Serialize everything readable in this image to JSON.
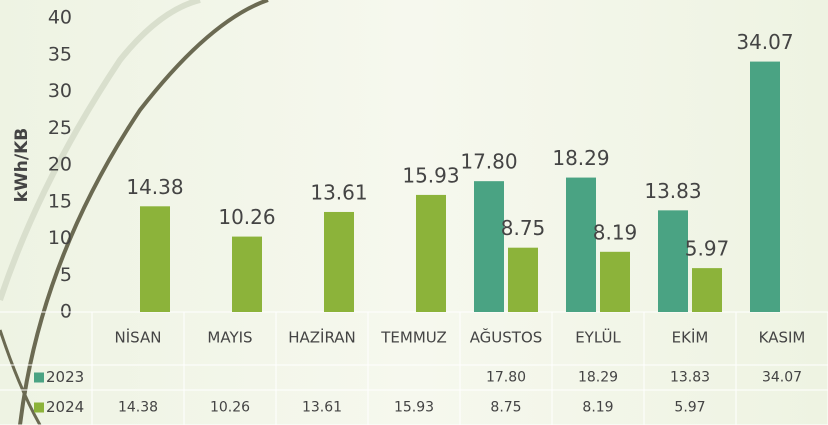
{
  "chart_data": {
    "type": "bar",
    "y_label": "kWh/KB",
    "categories": [
      "NİSAN",
      "MAYIS",
      "HAZİRAN",
      "TEMMUZ",
      "AĞUSTOS",
      "EYLÜL",
      "EKİM",
      "KASIM"
    ],
    "series": [
      {
        "name": "2023",
        "color": "#4aa383",
        "values": [
          null,
          null,
          null,
          null,
          17.8,
          18.29,
          13.83,
          34.07
        ],
        "value_labels": [
          null,
          null,
          null,
          null,
          "17.80",
          "18.29",
          "13.83",
          "34.07"
        ]
      },
      {
        "name": "2024",
        "color": "#8cb33a",
        "values": [
          14.38,
          10.26,
          13.61,
          15.93,
          8.75,
          8.19,
          5.97,
          null
        ],
        "value_labels": [
          "14.38",
          "10.26",
          "13.61",
          "15.93",
          "8.75",
          "8.19",
          "5.97",
          null
        ]
      }
    ],
    "ylim": [
      0,
      40
    ],
    "yticks": [
      0,
      5,
      10,
      15,
      20,
      25,
      30,
      35,
      40
    ],
    "grid": false,
    "data_table": true
  }
}
